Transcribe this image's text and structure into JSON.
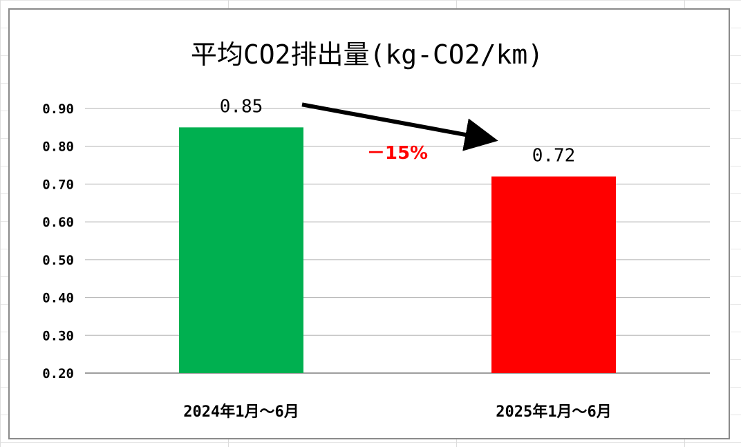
{
  "chart_data": {
    "type": "bar",
    "title": "平均CO2排出量(kg-CO2/km)",
    "categories": [
      "2024年1月～6月",
      "2025年1月～6月"
    ],
    "values": [
      0.85,
      0.72
    ],
    "data_labels": [
      "0.85",
      "0.72"
    ],
    "bar_colors": [
      "#00b050",
      "#ff0000"
    ],
    "ylim": [
      0.2,
      0.9
    ],
    "yticks": [
      "0.20",
      "0.30",
      "0.40",
      "0.50",
      "0.60",
      "0.70",
      "0.80",
      "0.90"
    ],
    "grid": true,
    "legend": false,
    "annotation": {
      "text": "－15%",
      "color": "#ff0000"
    },
    "arrow": {
      "from_category": "2024年1月～6月",
      "to_category": "2025年1月～6月",
      "color": "#000000"
    }
  }
}
